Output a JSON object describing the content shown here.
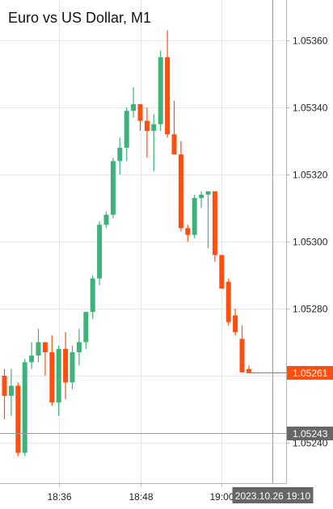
{
  "chart_data": {
    "type": "candlestick",
    "title": "Euro vs US Dollar, M1",
    "x_ticks": [
      {
        "label": "18:36",
        "index": 8
      },
      {
        "label": "18:48",
        "index": 20
      },
      {
        "label": "19:00",
        "index": 32
      }
    ],
    "y_ticks": [
      "1.05240",
      "1.05260",
      "1.05280",
      "1.05300",
      "1.05320",
      "1.05340",
      "1.05360"
    ],
    "ylim": [
      1.05226,
      1.05368
    ],
    "current_price": {
      "value": 1.05261,
      "label": "1.05261",
      "color": "#ff4e0e"
    },
    "crosshair": {
      "price": 1.05243,
      "price_label": "1.05243",
      "time_label": "2023.10.26 19:10",
      "index": 39.5
    },
    "colors": {
      "up": "#3db37a",
      "down": "#ff4e0e",
      "grid": "#e6e6e6",
      "axis": "#b3b3b3",
      "crosshair": "#999999",
      "tag": "#666666"
    },
    "candles": [
      {
        "o": 1.0526,
        "h": 1.05262,
        "l": 1.05247,
        "c": 1.05254
      },
      {
        "o": 1.05254,
        "h": 1.05262,
        "l": 1.05248,
        "c": 1.05257
      },
      {
        "o": 1.05257,
        "h": 1.05258,
        "l": 1.05236,
        "c": 1.05237
      },
      {
        "o": 1.05237,
        "h": 1.05265,
        "l": 1.05236,
        "c": 1.05264
      },
      {
        "o": 1.05264,
        "h": 1.0527,
        "l": 1.05262,
        "c": 1.05266
      },
      {
        "o": 1.05266,
        "h": 1.05274,
        "l": 1.05264,
        "c": 1.0527
      },
      {
        "o": 1.0527,
        "h": 1.0527,
        "l": 1.0526,
        "c": 1.05267
      },
      {
        "o": 1.05267,
        "h": 1.05272,
        "l": 1.05251,
        "c": 1.05252
      },
      {
        "o": 1.05252,
        "h": 1.05269,
        "l": 1.05248,
        "c": 1.05268
      },
      {
        "o": 1.05268,
        "h": 1.05273,
        "l": 1.05253,
        "c": 1.05258
      },
      {
        "o": 1.05258,
        "h": 1.05269,
        "l": 1.05256,
        "c": 1.05267
      },
      {
        "o": 1.05267,
        "h": 1.05274,
        "l": 1.05263,
        "c": 1.0527
      },
      {
        "o": 1.0527,
        "h": 1.05279,
        "l": 1.05268,
        "c": 1.05279
      },
      {
        "o": 1.05279,
        "h": 1.0529,
        "l": 1.05277,
        "c": 1.05289
      },
      {
        "o": 1.05289,
        "h": 1.05306,
        "l": 1.05287,
        "c": 1.05305
      },
      {
        "o": 1.05305,
        "h": 1.05309,
        "l": 1.05304,
        "c": 1.05308
      },
      {
        "o": 1.05308,
        "h": 1.05325,
        "l": 1.05307,
        "c": 1.05324
      },
      {
        "o": 1.05324,
        "h": 1.05331,
        "l": 1.0532,
        "c": 1.05328
      },
      {
        "o": 1.05328,
        "h": 1.0534,
        "l": 1.05324,
        "c": 1.05339
      },
      {
        "o": 1.05339,
        "h": 1.05346,
        "l": 1.05337,
        "c": 1.05341
      },
      {
        "o": 1.05341,
        "h": 1.05341,
        "l": 1.05333,
        "c": 1.05336
      },
      {
        "o": 1.05336,
        "h": 1.0534,
        "l": 1.05325,
        "c": 1.05333
      },
      {
        "o": 1.05333,
        "h": 1.05338,
        "l": 1.05321,
        "c": 1.05335
      },
      {
        "o": 1.05335,
        "h": 1.05357,
        "l": 1.05333,
        "c": 1.05355
      },
      {
        "o": 1.05355,
        "h": 1.05363,
        "l": 1.05331,
        "c": 1.05332
      },
      {
        "o": 1.05332,
        "h": 1.05342,
        "l": 1.05326,
        "c": 1.05326
      },
      {
        "o": 1.05326,
        "h": 1.0533,
        "l": 1.05303,
        "c": 1.05304
      },
      {
        "o": 1.05304,
        "h": 1.05305,
        "l": 1.053,
        "c": 1.05302
      },
      {
        "o": 1.05302,
        "h": 1.05314,
        "l": 1.05301,
        "c": 1.05313
      },
      {
        "o": 1.05313,
        "h": 1.05315,
        "l": 1.0531,
        "c": 1.05314
      },
      {
        "o": 1.05314,
        "h": 1.05315,
        "l": 1.05298,
        "c": 1.05315
      },
      {
        "o": 1.05315,
        "h": 1.05315,
        "l": 1.05294,
        "c": 1.05296
      },
      {
        "o": 1.05296,
        "h": 1.05296,
        "l": 1.05286,
        "c": 1.05286
      },
      {
        "o": 1.05288,
        "h": 1.05289,
        "l": 1.05275,
        "c": 1.05276
      },
      {
        "o": 1.05278,
        "h": 1.0528,
        "l": 1.05272,
        "c": 1.05273
      },
      {
        "o": 1.05271,
        "h": 1.05275,
        "l": 1.05261,
        "c": 1.05261
      },
      {
        "o": 1.05262,
        "h": 1.05263,
        "l": 1.05261,
        "c": 1.05261
      }
    ]
  }
}
